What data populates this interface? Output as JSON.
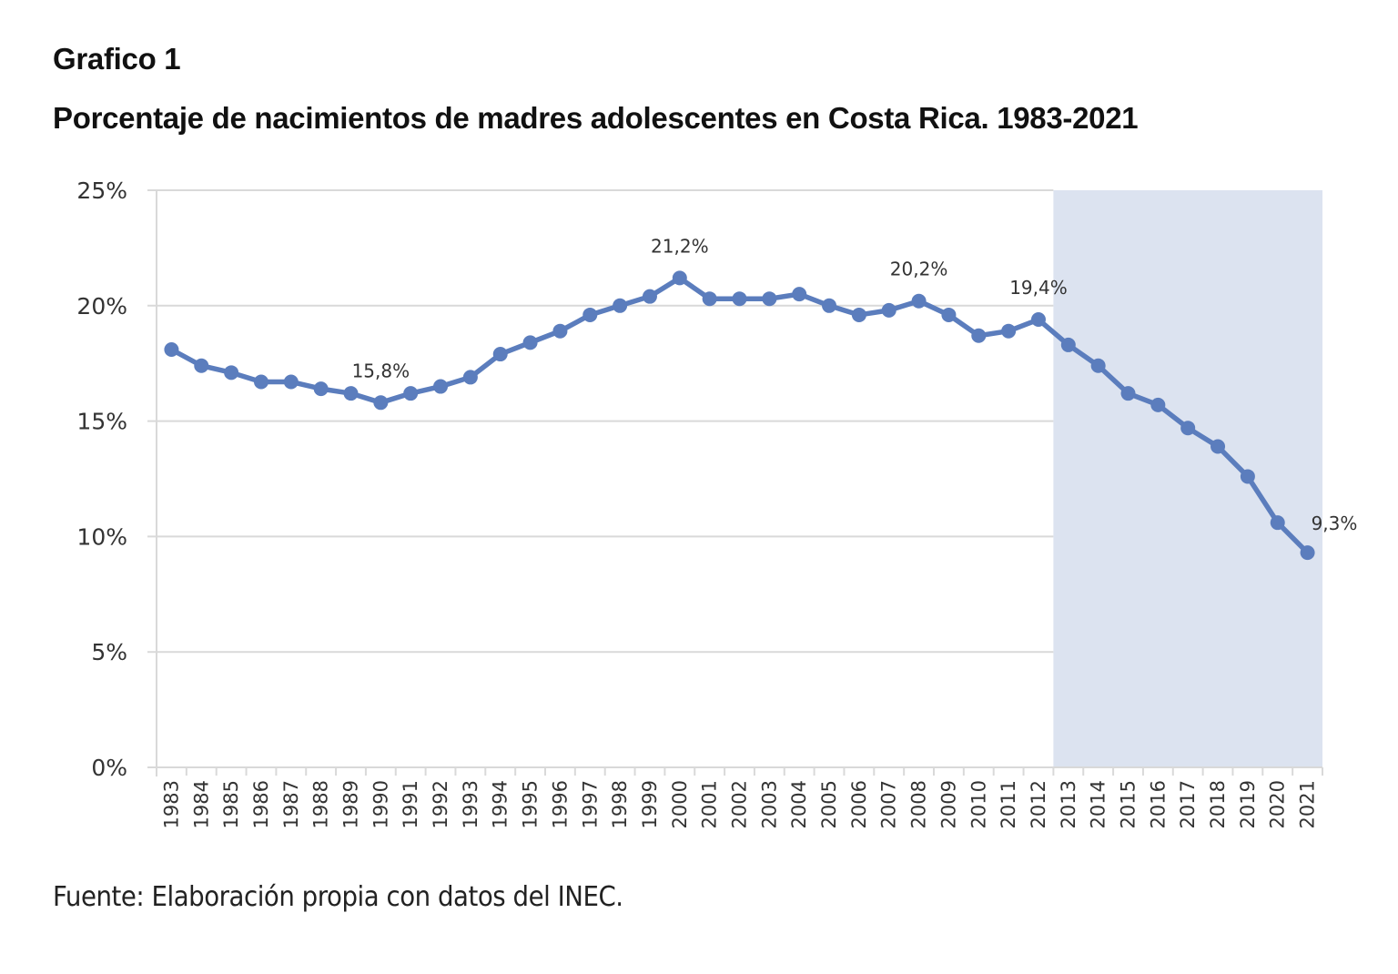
{
  "header": {
    "figure_label": "Grafico 1",
    "title": "Porcentaje de nacimientos de madres adolescentes en Costa Rica. 1983-2021"
  },
  "footer": {
    "source": "Fuente: Elaboración propia con datos del INEC."
  },
  "colors": {
    "line": "#5b7dbd",
    "highlight_band": "#dce3f0",
    "grid": "#d9d9d9",
    "axis": "#d9d9d9"
  },
  "chart_data": {
    "type": "line",
    "title": "Porcentaje de nacimientos de madres adolescentes en Costa Rica. 1983-2021",
    "xlabel": "",
    "ylabel": "",
    "ylim": [
      0,
      25
    ],
    "yticks": [
      0,
      5,
      10,
      15,
      20,
      25
    ],
    "ytick_labels": [
      "0%",
      "5%",
      "10%",
      "15%",
      "20%",
      "25%"
    ],
    "grid": "horizontal",
    "legend": "none",
    "highlight_range": {
      "from": "2013",
      "to": "2021"
    },
    "categories": [
      "1983",
      "1984",
      "1985",
      "1986",
      "1987",
      "1988",
      "1989",
      "1990",
      "1991",
      "1992",
      "1993",
      "1994",
      "1995",
      "1996",
      "1997",
      "1998",
      "1999",
      "2000",
      "2001",
      "2002",
      "2003",
      "2004",
      "2005",
      "2006",
      "2007",
      "2008",
      "2009",
      "2010",
      "2011",
      "2012",
      "2013",
      "2014",
      "2015",
      "2016",
      "2017",
      "2018",
      "2019",
      "2020",
      "2021"
    ],
    "series": [
      {
        "name": "Porcentaje de nacimientos de madres adolescentes",
        "values": [
          18.1,
          17.4,
          17.1,
          16.7,
          16.7,
          16.4,
          16.2,
          15.8,
          16.2,
          16.5,
          16.9,
          17.9,
          18.4,
          18.9,
          19.6,
          20.0,
          20.4,
          21.2,
          20.3,
          20.3,
          20.3,
          20.5,
          20.0,
          19.6,
          19.8,
          20.2,
          19.6,
          18.7,
          18.9,
          19.4,
          18.3,
          17.4,
          16.2,
          15.7,
          14.7,
          13.9,
          12.6,
          10.6,
          9.3
        ]
      }
    ],
    "data_labels": [
      {
        "category": "1990",
        "text": "15,8%"
      },
      {
        "category": "2000",
        "text": "21,2%"
      },
      {
        "category": "2008",
        "text": "20,2%"
      },
      {
        "category": "2012",
        "text": "19,4%"
      },
      {
        "category": "2021",
        "text": "9,3%"
      }
    ]
  }
}
